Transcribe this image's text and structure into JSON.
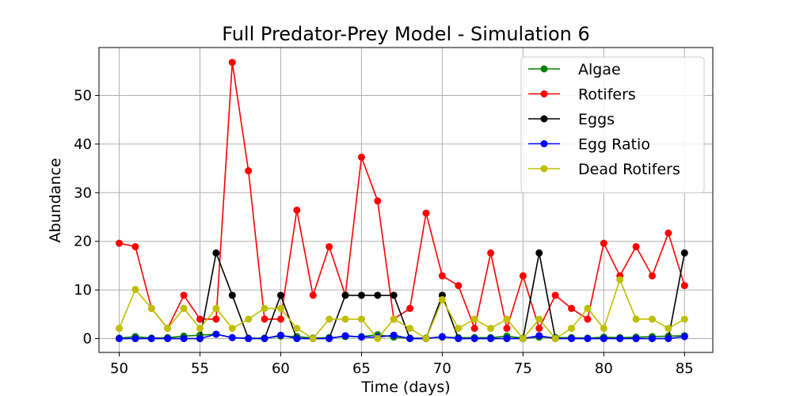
{
  "chart_data": {
    "type": "line",
    "title": "Full Predator-Prey Model - Simulation 6",
    "xlabel": "Time (days)",
    "ylabel": "Abundance",
    "xlim": [
      48.75,
      86.75
    ],
    "ylim": [
      -2.85,
      59.85
    ],
    "xticks": [
      50,
      55,
      60,
      65,
      70,
      75,
      80,
      85
    ],
    "yticks": [
      0,
      10,
      20,
      30,
      40,
      50
    ],
    "grid": true,
    "legend_position": "top-right",
    "x": [
      50,
      51,
      52,
      53,
      54,
      55,
      56,
      57,
      58,
      59,
      60,
      61,
      62,
      63,
      64,
      65,
      66,
      67,
      68,
      69,
      70,
      71,
      72,
      73,
      74,
      75,
      76,
      77,
      78,
      79,
      80,
      81,
      82,
      83,
      84,
      85
    ],
    "series": [
      {
        "name": "Algae",
        "color": "#008000",
        "values": [
          0.1,
          0.4,
          0.1,
          0.2,
          0.5,
          0.7,
          0.9,
          0.2,
          0.1,
          0.1,
          0.5,
          0.4,
          0.1,
          0.2,
          0.4,
          0.4,
          0.8,
          0.3,
          0.1,
          0.1,
          0.3,
          0.2,
          0.2,
          0.2,
          0.5,
          0.1,
          0.3,
          0.2,
          0.2,
          0.1,
          0.3,
          0.2,
          0.3,
          0.4,
          0.5,
          0.6
        ]
      },
      {
        "name": "Rotifers",
        "color": "#ff0000",
        "values": [
          19.6,
          18.9,
          6.2,
          2.1,
          8.9,
          4.0,
          4.0,
          56.8,
          34.5,
          4.0,
          4.0,
          26.4,
          8.9,
          18.9,
          8.9,
          37.3,
          28.3,
          4.0,
          6.2,
          25.8,
          12.9,
          10.9,
          2.1,
          17.6,
          2.1,
          12.9,
          2.1,
          8.9,
          6.2,
          4.0,
          19.6,
          12.9,
          18.9,
          12.9,
          21.7,
          10.9
        ]
      },
      {
        "name": "Eggs",
        "color": "#000000",
        "values": [
          0,
          0,
          0,
          0,
          0,
          0,
          17.6,
          8.9,
          0,
          0,
          8.9,
          0,
          0,
          0,
          8.9,
          8.9,
          8.9,
          8.9,
          0,
          0,
          8.9,
          0,
          0,
          0,
          0,
          0,
          17.6,
          0,
          0,
          0,
          0,
          0,
          0,
          0,
          0,
          17.6
        ]
      },
      {
        "name": "Egg Ratio",
        "color": "#0000ff",
        "values": [
          0,
          0,
          0,
          0,
          0,
          0,
          0.9,
          0.2,
          0,
          0,
          0.7,
          0,
          0,
          0,
          0.6,
          0.3,
          0.3,
          0.7,
          0,
          0,
          0.4,
          0,
          0,
          0,
          0,
          0,
          0.6,
          0,
          0,
          0,
          0,
          0,
          0,
          0,
          0,
          0.4
        ]
      },
      {
        "name": "Dead Rotifers",
        "color": "#bfbf00",
        "values": [
          2.1,
          10.1,
          6.2,
          2.1,
          6.2,
          2.1,
          6.2,
          2.1,
          4.0,
          6.2,
          6.2,
          2.1,
          0,
          4.0,
          4.0,
          4.0,
          0,
          4.0,
          2.1,
          0,
          8.0,
          2.1,
          4.0,
          2.1,
          4.0,
          0,
          4.0,
          0,
          2.1,
          6.2,
          2.1,
          12.1,
          4.0,
          4.0,
          2.1,
          4.0
        ]
      }
    ]
  }
}
